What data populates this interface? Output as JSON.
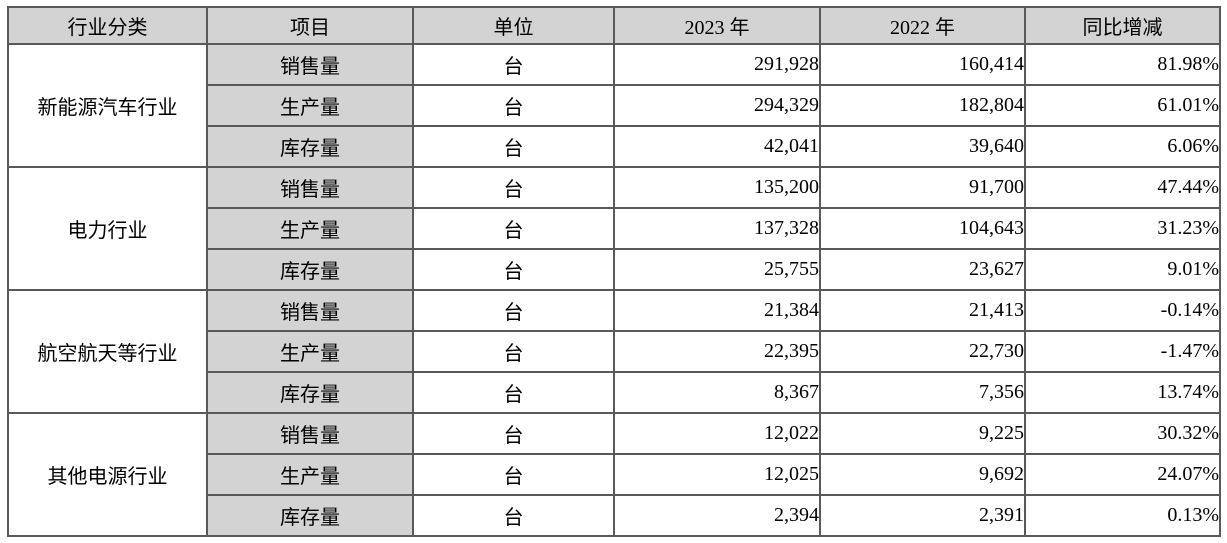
{
  "colors": {
    "header_bg": "#d3d3d3",
    "item_bg": "#d3d3d3",
    "border": "#595959",
    "cell_bg": "#ffffff",
    "text": "#000000"
  },
  "table": {
    "columns": [
      "行业分类",
      "项目",
      "单位",
      "2023 年",
      "2022 年",
      "同比增减"
    ],
    "groups": [
      {
        "industry": "新能源汽车行业",
        "rows": [
          {
            "item": "销售量",
            "unit": "台",
            "y2023": "291,928",
            "y2022": "160,414",
            "yoy": "81.98%"
          },
          {
            "item": "生产量",
            "unit": "台",
            "y2023": "294,329",
            "y2022": "182,804",
            "yoy": "61.01%"
          },
          {
            "item": "库存量",
            "unit": "台",
            "y2023": "42,041",
            "y2022": "39,640",
            "yoy": "6.06%"
          }
        ]
      },
      {
        "industry": "电力行业",
        "rows": [
          {
            "item": "销售量",
            "unit": "台",
            "y2023": "135,200",
            "y2022": "91,700",
            "yoy": "47.44%"
          },
          {
            "item": "生产量",
            "unit": "台",
            "y2023": "137,328",
            "y2022": "104,643",
            "yoy": "31.23%"
          },
          {
            "item": "库存量",
            "unit": "台",
            "y2023": "25,755",
            "y2022": "23,627",
            "yoy": "9.01%"
          }
        ]
      },
      {
        "industry": "航空航天等行业",
        "rows": [
          {
            "item": "销售量",
            "unit": "台",
            "y2023": "21,384",
            "y2022": "21,413",
            "yoy": "-0.14%"
          },
          {
            "item": "生产量",
            "unit": "台",
            "y2023": "22,395",
            "y2022": "22,730",
            "yoy": "-1.47%"
          },
          {
            "item": "库存量",
            "unit": "台",
            "y2023": "8,367",
            "y2022": "7,356",
            "yoy": "13.74%"
          }
        ]
      },
      {
        "industry": "其他电源行业",
        "rows": [
          {
            "item": "销售量",
            "unit": "台",
            "y2023": "12,022",
            "y2022": "9,225",
            "yoy": "30.32%"
          },
          {
            "item": "生产量",
            "unit": "台",
            "y2023": "12,025",
            "y2022": "9,692",
            "yoy": "24.07%"
          },
          {
            "item": "库存量",
            "unit": "台",
            "y2023": "2,394",
            "y2022": "2,391",
            "yoy": "0.13%"
          }
        ]
      }
    ]
  }
}
